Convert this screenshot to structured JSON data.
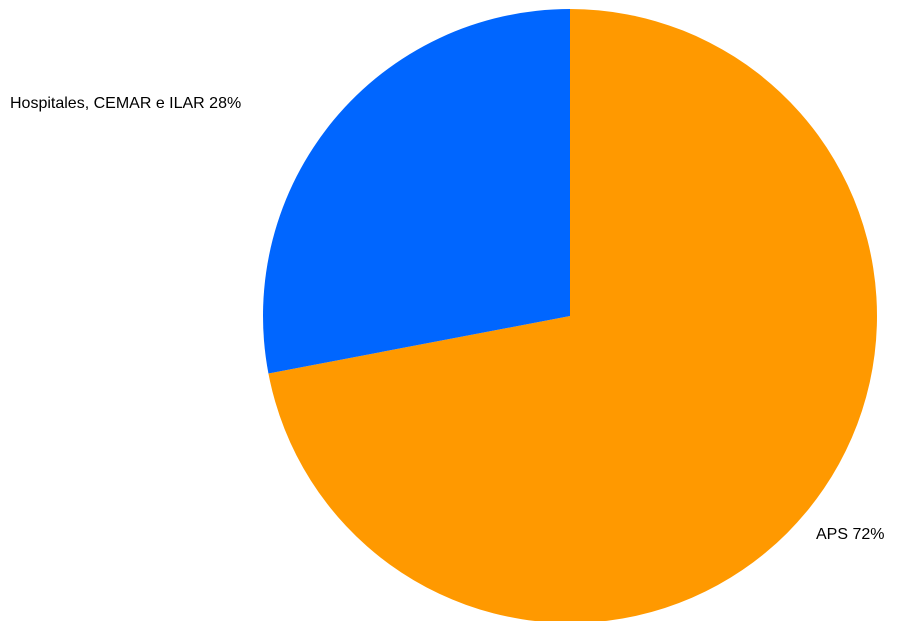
{
  "chart_data": {
    "type": "pie",
    "title": "",
    "slices": [
      {
        "label": "APS",
        "value": 72,
        "display": "APS 72%",
        "color": "#ff9900"
      },
      {
        "label": "Hospitales, CEMAR e ILAR",
        "value": 28,
        "display": "Hospitales, CEMAR e ILAR 28%",
        "color": "#0066ff"
      }
    ],
    "legend": "none",
    "start": "12 o'clock",
    "direction": "clockwise"
  }
}
